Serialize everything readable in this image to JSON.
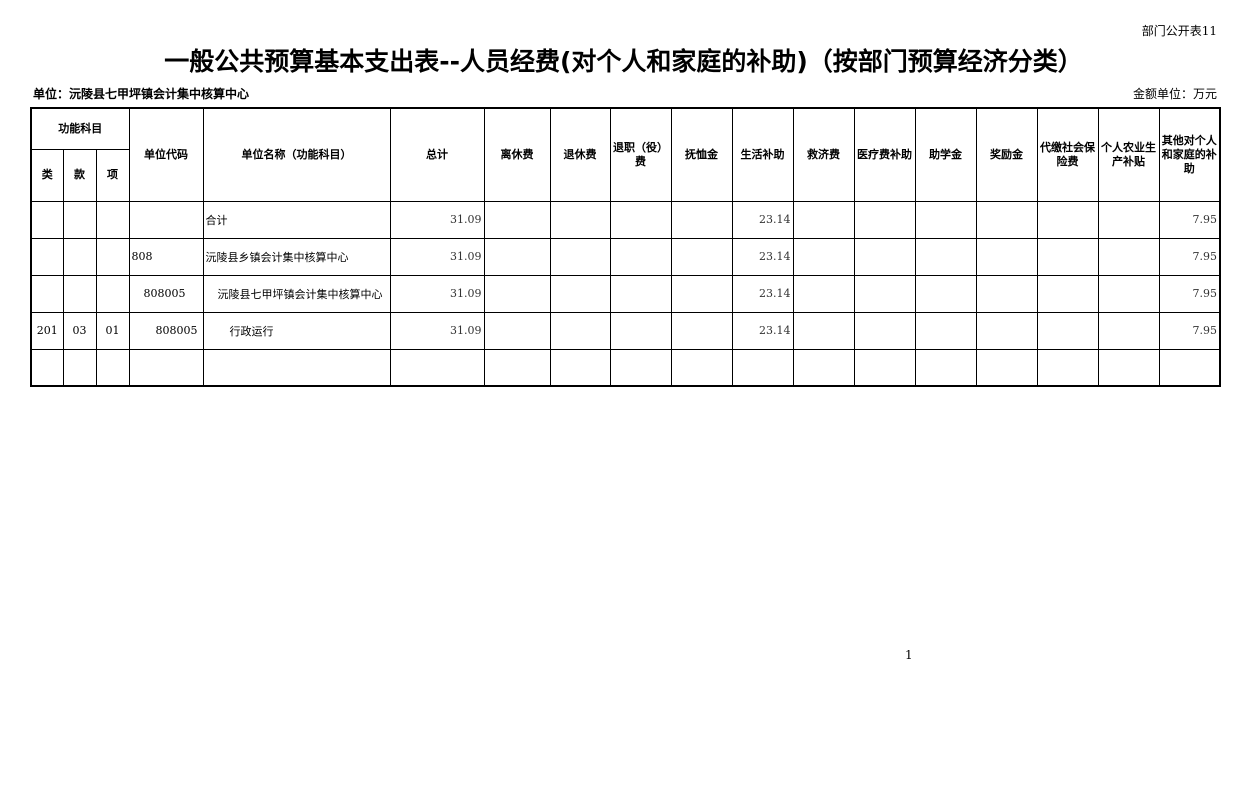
{
  "form_number": "部门公开表11",
  "title": "一般公共预算基本支出表--人员经费(对个人和家庭的补助)（按部门预算经济分类）",
  "unit_label": "单位：沅陵县七甲坪镇会计集中核算中心",
  "money_unit": "金额单位：万元",
  "headers": {
    "func_subject": "功能科目",
    "lei": "类",
    "kuan": "款",
    "xiang": "项",
    "columns": [
      "单位代码",
      "单位名称（功能科目）",
      "总计",
      "离休费",
      "退休费",
      "退职（役）费",
      "抚恤金",
      "生活补助",
      "救济费",
      "医疗费补助",
      "助学金",
      "奖励金",
      "代缴社会保险费",
      "个人农业生产补贴",
      "其他对个人和家庭的补助"
    ]
  },
  "rows": [
    {
      "lei": "",
      "kuan": "",
      "xiang": "",
      "code": "",
      "name": "合计",
      "values": [
        "31.09",
        "",
        "",
        "",
        "",
        "23.14",
        "",
        "",
        "",
        "",
        "",
        "",
        "7.95"
      ]
    },
    {
      "lei": "",
      "kuan": "",
      "xiang": "",
      "code": "808",
      "name": "沅陵县乡镇会计集中核算中心",
      "values": [
        "31.09",
        "",
        "",
        "",
        "",
        "23.14",
        "",
        "",
        "",
        "",
        "",
        "",
        "7.95"
      ]
    },
    {
      "lei": "",
      "kuan": "",
      "xiang": "",
      "code": "808005",
      "name": "沅陵县七甲坪镇会计集中核算中心",
      "values": [
        "31.09",
        "",
        "",
        "",
        "",
        "23.14",
        "",
        "",
        "",
        "",
        "",
        "",
        "7.95"
      ]
    },
    {
      "lei": "201",
      "kuan": "03",
      "xiang": "01",
      "code": "808005",
      "name": "行政运行",
      "values": [
        "31.09",
        "",
        "",
        "",
        "",
        "23.14",
        "",
        "",
        "",
        "",
        "",
        "",
        "7.95"
      ]
    },
    {
      "lei": "",
      "kuan": "",
      "xiang": "",
      "code": "",
      "name": "",
      "values": [
        "",
        "",
        "",
        "",
        "",
        "",
        "",
        "",
        "",
        "",
        "",
        "",
        ""
      ]
    }
  ],
  "page_number": "1"
}
